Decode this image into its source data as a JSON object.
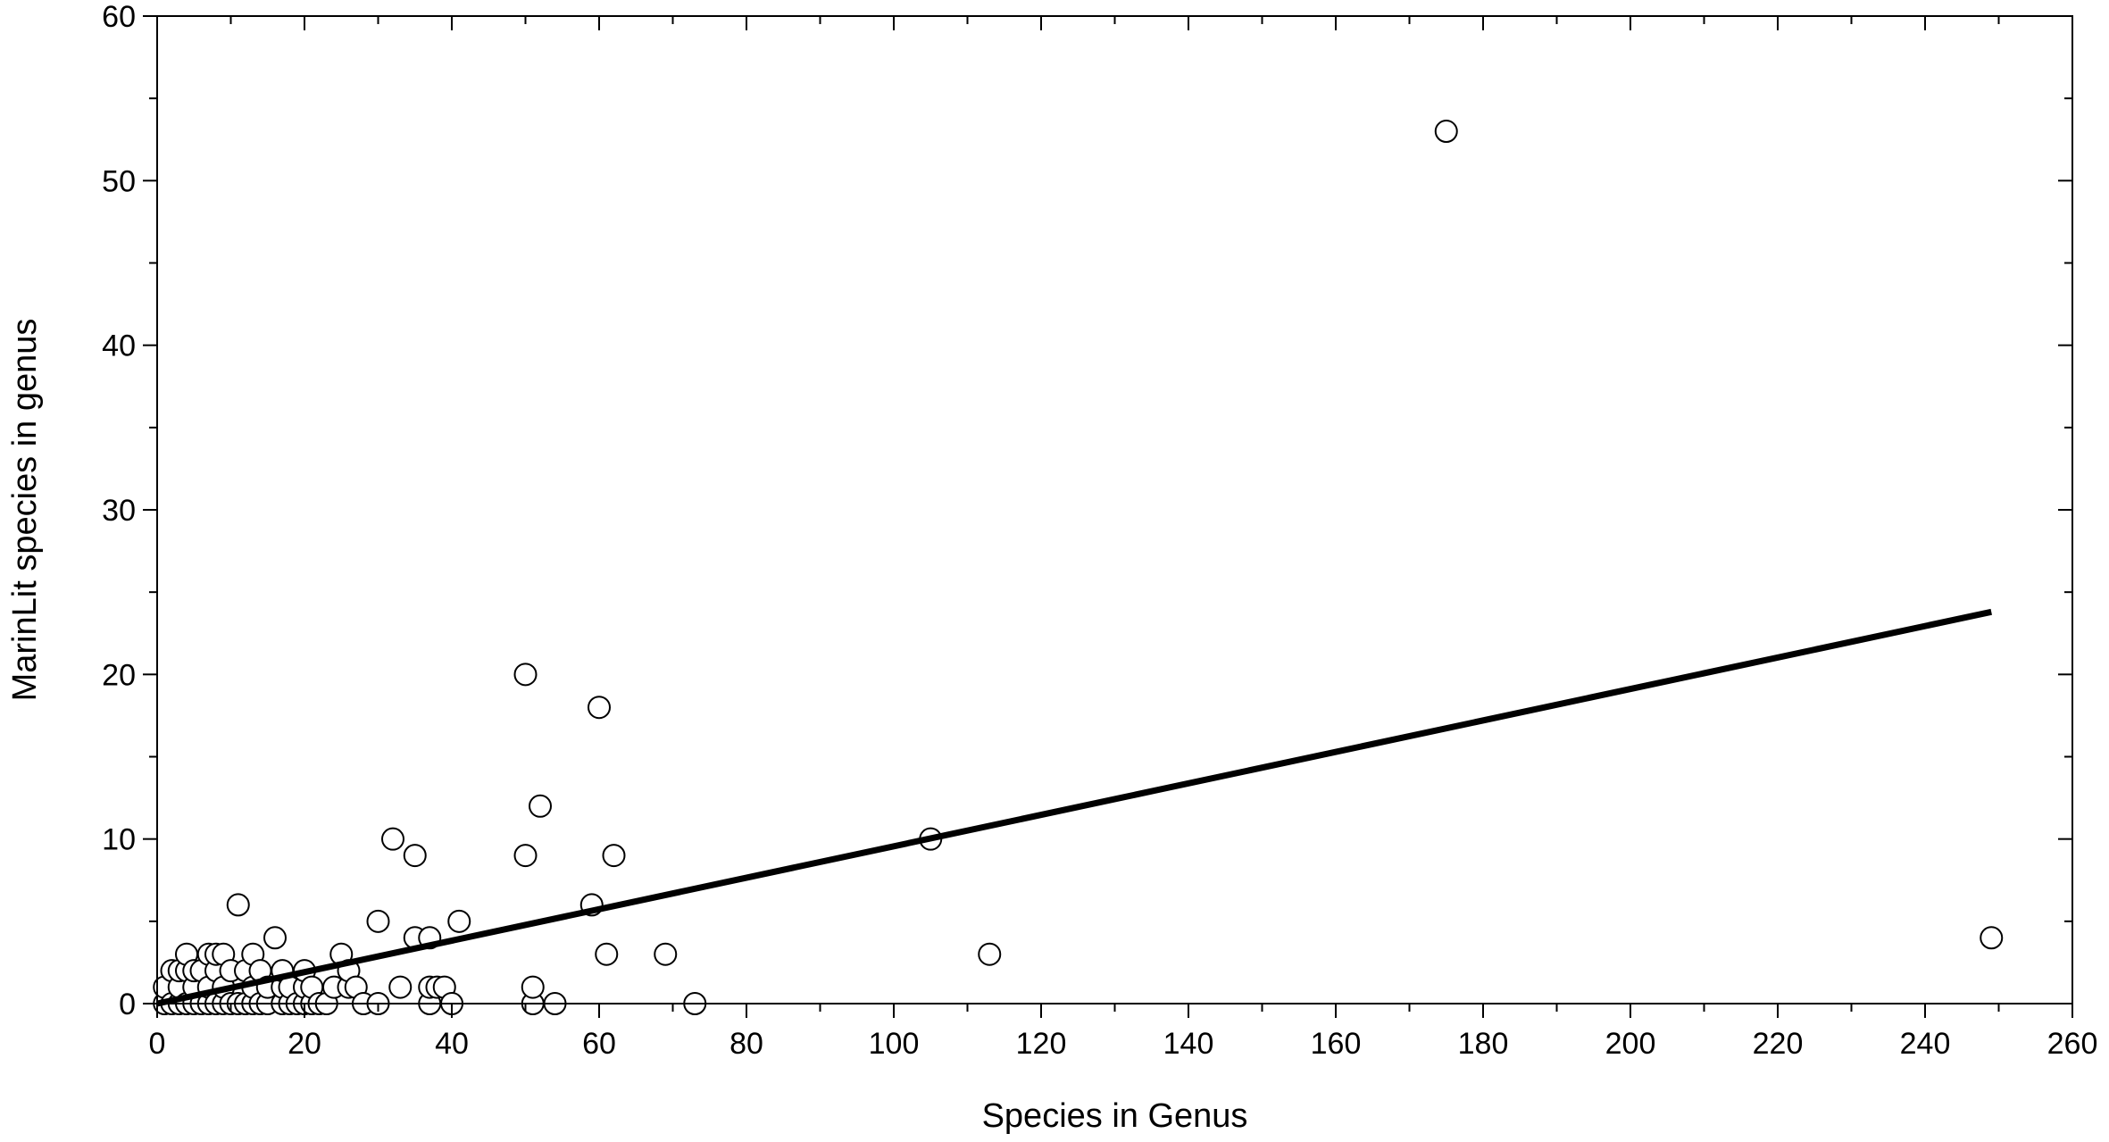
{
  "chart_data": {
    "type": "scatter",
    "title": "",
    "xlabel": "Species in Genus",
    "ylabel": "MarinLit species in genus",
    "xlim": [
      0,
      260
    ],
    "ylim": [
      0,
      60
    ],
    "x_major_ticks": [
      0,
      20,
      40,
      60,
      80,
      100,
      120,
      140,
      160,
      180,
      200,
      220,
      240,
      260
    ],
    "x_minor_step": 10,
    "y_major_ticks": [
      0,
      10,
      20,
      30,
      40,
      50,
      60
    ],
    "y_minor_step": 5,
    "grid": false,
    "legend": "none",
    "colors": {
      "marker_fill": "#ffffff",
      "marker_edge": "#000000",
      "line": "#000000"
    },
    "series": [
      {
        "marker": "open-circle",
        "points": [
          [
            1,
            0
          ],
          [
            1,
            1
          ],
          [
            2,
            0
          ],
          [
            2,
            2
          ],
          [
            3,
            0
          ],
          [
            3,
            1
          ],
          [
            3,
            2
          ],
          [
            4,
            0
          ],
          [
            4,
            2
          ],
          [
            4,
            3
          ],
          [
            5,
            0
          ],
          [
            5,
            1
          ],
          [
            5,
            2
          ],
          [
            6,
            0
          ],
          [
            6,
            2
          ],
          [
            7,
            0
          ],
          [
            7,
            1
          ],
          [
            7,
            3
          ],
          [
            8,
            0
          ],
          [
            8,
            2
          ],
          [
            8,
            3
          ],
          [
            9,
            0
          ],
          [
            9,
            1
          ],
          [
            9,
            3
          ],
          [
            10,
            0
          ],
          [
            10,
            2
          ],
          [
            11,
            0
          ],
          [
            11,
            6
          ],
          [
            12,
            0
          ],
          [
            12,
            2
          ],
          [
            13,
            0
          ],
          [
            13,
            1
          ],
          [
            13,
            3
          ],
          [
            14,
            0
          ],
          [
            14,
            2
          ],
          [
            15,
            0
          ],
          [
            15,
            1
          ],
          [
            16,
            4
          ],
          [
            17,
            0
          ],
          [
            17,
            1
          ],
          [
            17,
            2
          ],
          [
            18,
            0
          ],
          [
            18,
            1
          ],
          [
            19,
            0
          ],
          [
            20,
            0
          ],
          [
            20,
            1
          ],
          [
            20,
            2
          ],
          [
            21,
            0
          ],
          [
            21,
            1
          ],
          [
            22,
            0
          ],
          [
            23,
            0
          ],
          [
            24,
            1
          ],
          [
            25,
            3
          ],
          [
            26,
            1
          ],
          [
            26,
            2
          ],
          [
            27,
            1
          ],
          [
            28,
            0
          ],
          [
            30,
            0
          ],
          [
            30,
            5
          ],
          [
            32,
            10
          ],
          [
            33,
            1
          ],
          [
            35,
            4
          ],
          [
            35,
            9
          ],
          [
            37,
            0
          ],
          [
            37,
            1
          ],
          [
            37,
            4
          ],
          [
            38,
            1
          ],
          [
            39,
            1
          ],
          [
            40,
            0
          ],
          [
            41,
            5
          ],
          [
            50,
            9
          ],
          [
            50,
            20
          ],
          [
            51,
            0
          ],
          [
            51,
            1
          ],
          [
            52,
            12
          ],
          [
            54,
            0
          ],
          [
            59,
            6
          ],
          [
            60,
            18
          ],
          [
            61,
            3
          ],
          [
            62,
            9
          ],
          [
            69,
            3
          ],
          [
            73,
            0
          ],
          [
            105,
            10
          ],
          [
            113,
            3
          ],
          [
            175,
            53
          ],
          [
            249,
            4
          ]
        ]
      }
    ],
    "fit_line": {
      "x": [
        0,
        249
      ],
      "y": [
        0,
        23.8
      ]
    }
  }
}
